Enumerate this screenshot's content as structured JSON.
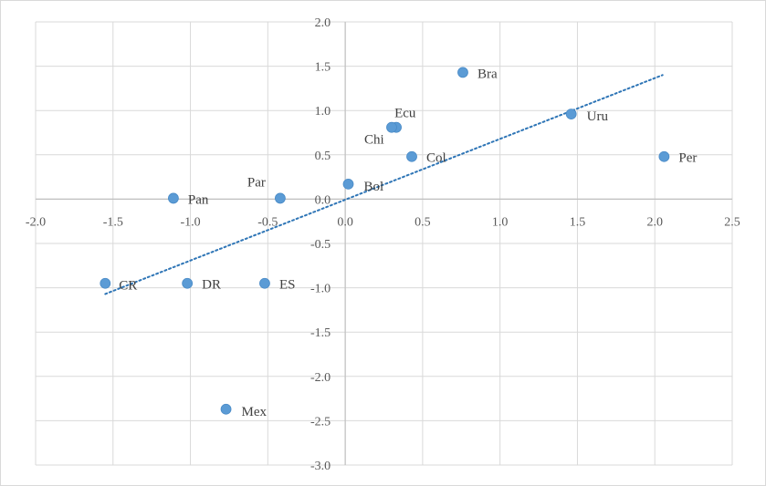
{
  "chart_data": {
    "type": "scatter",
    "title": "",
    "xlabel": "",
    "ylabel": "",
    "xlim": [
      -2.0,
      2.5
    ],
    "ylim": [
      -3.0,
      2.0
    ],
    "x_ticks": [
      "-2.0",
      "-1.5",
      "-1.0",
      "-0.5",
      "0.0",
      "0.5",
      "1.0",
      "1.5",
      "2.0",
      "2.5"
    ],
    "y_ticks": [
      "2.0",
      "1.5",
      "1.0",
      "0.5",
      "0.0",
      "-0.5",
      "-1.0",
      "-1.5",
      "-2.0",
      "-2.5",
      "-3.0"
    ],
    "grid": "vertical and horizontal",
    "legend": "none",
    "marker_color": "#5b9bd5",
    "trendline": {
      "type": "linear",
      "style": "dotted",
      "color": "#2e75b6",
      "from": [
        -1.55,
        -1.07
      ],
      "to": [
        2.05,
        1.4
      ]
    },
    "points": [
      {
        "label": "Bra",
        "x": 0.76,
        "y": 1.43
      },
      {
        "label": "Ecu",
        "x": 0.33,
        "y": 0.81
      },
      {
        "label": "Chi",
        "x": 0.3,
        "y": 0.81
      },
      {
        "label": "Uru",
        "x": 1.46,
        "y": 0.96
      },
      {
        "label": "Col",
        "x": 0.43,
        "y": 0.48
      },
      {
        "label": "Per",
        "x": 2.06,
        "y": 0.48
      },
      {
        "label": "Par",
        "x": -0.42,
        "y": 0.01
      },
      {
        "label": "Bol",
        "x": 0.02,
        "y": 0.17
      },
      {
        "label": "Pan",
        "x": -1.11,
        "y": 0.01
      },
      {
        "label": "CR",
        "x": -1.55,
        "y": -0.95
      },
      {
        "label": "DR",
        "x": -1.02,
        "y": -0.95
      },
      {
        "label": "ES",
        "x": -0.52,
        "y": -0.95
      },
      {
        "label": "Mex",
        "x": -0.77,
        "y": -2.37
      }
    ]
  }
}
